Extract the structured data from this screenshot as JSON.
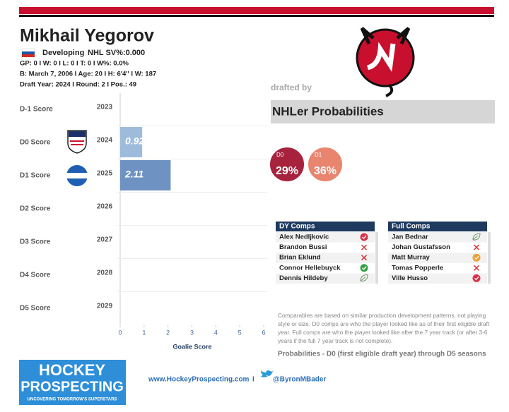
{
  "header": {
    "name": "Mikhail Yegorov",
    "status": "Developing",
    "sv": "NHL SV%:0.000",
    "stats": "GP: 0 I W: 0 I L: 0  I T: 0  I W%: 0.0%",
    "bio": "B: March 7, 2006 I Age: 20 I H: 6'4'' I W: 187",
    "draft": "Draft Year: 2024 I Round: 2 I Pos.: 49"
  },
  "chart_data": {
    "type": "bar",
    "orientation": "horizontal",
    "categories": [
      "D-1 Score",
      "D0 Score",
      "D1 Score",
      "D2  Score",
      "D3 Score",
      "D4  Score",
      "D5 Score"
    ],
    "years": [
      "2023",
      "2024",
      "2025",
      "2026",
      "2027",
      "2028",
      "2029"
    ],
    "values": [
      null,
      0.92,
      2.11,
      null,
      null,
      null,
      null
    ],
    "colors": [
      null,
      "#9dbbdb",
      "#6e93c2",
      null,
      null,
      null,
      null
    ],
    "xlim": [
      0,
      6
    ],
    "xticks": [
      0,
      1,
      2,
      3,
      4,
      5,
      6
    ],
    "xlabel": "Goalie Score"
  },
  "drafted_by": "drafted by",
  "probabilities": {
    "title": "NHLer Probabilities",
    "labels": [
      "D0",
      "D1"
    ],
    "values": [
      29,
      36
    ],
    "value_labels": [
      "29%",
      "36%"
    ],
    "colors": [
      "#a6223d",
      "#e9856f"
    ]
  },
  "dy_comps": {
    "title": "DY Comps",
    "names": [
      "Alex Nedljkovic",
      "Brandon Bussi",
      "Brian Eklund",
      "Connor Hellebuyck",
      "Dennis Hildeby"
    ]
  },
  "full_comps": {
    "title": "Full Comps",
    "names": [
      "Jan Bednar",
      "Johan Gustafsson",
      "Matt Murray",
      "Tomas Popperle",
      "Ville Husso"
    ]
  },
  "note": [
    "Comparables are based on similar production development patterns, not playing",
    "style or size. D0 comps are who the player looked like as of their first eligible draft",
    "year. Full comps are who the player looked like after the 7 year track (or after 3-6",
    "years if the full 7 year track is not complete)."
  ],
  "caption": "Probabilities - D0 (first eligible draft year) through D5 seasons",
  "footer": {
    "logo_title": [
      "HOCKEY",
      "PROSPECTING"
    ],
    "logo_tagline": "UNCOVERING TOMORROW'S SUPERSTARS",
    "website": "www.HockeyProspecting.com",
    "separator": "I",
    "twitter": "@ByronMBader"
  }
}
